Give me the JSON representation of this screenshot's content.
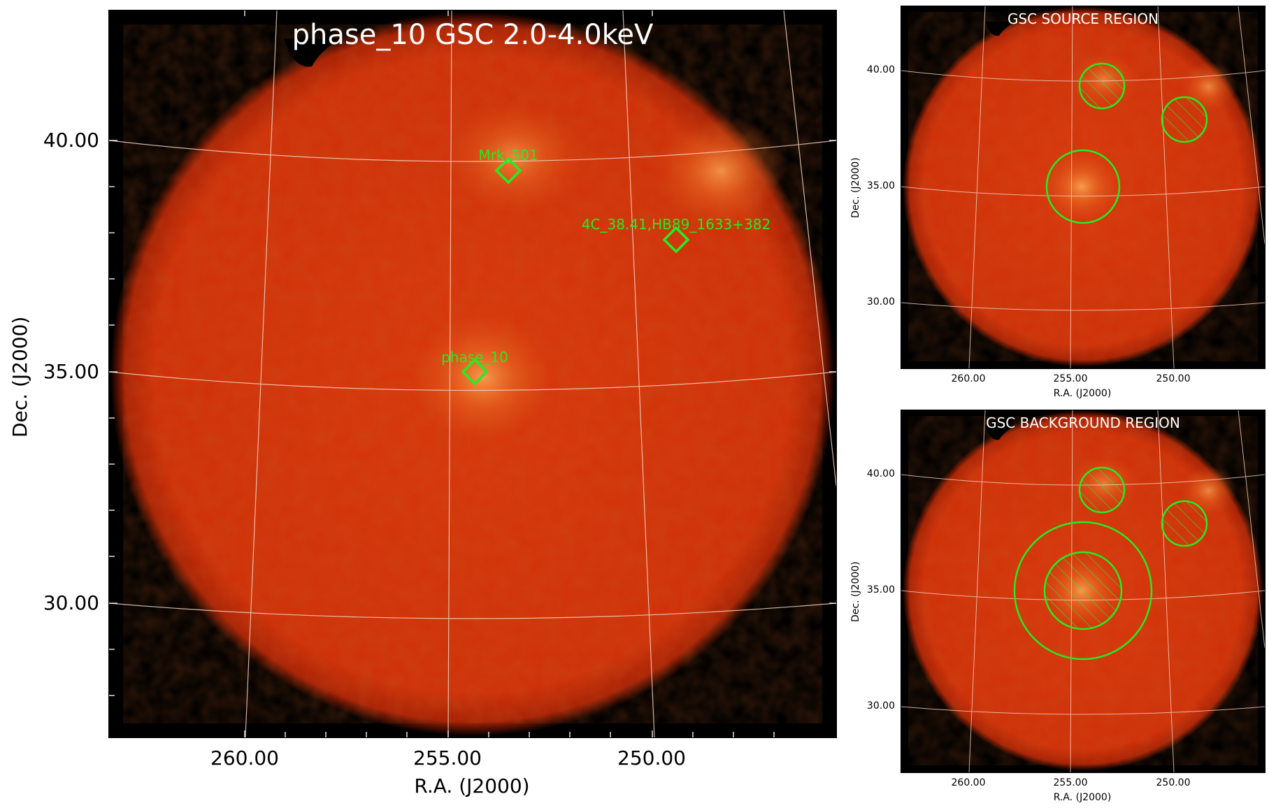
{
  "main": {
    "title": "phase_10 GSC 2.0-4.0keV",
    "xlabel": "R.A. (J2000)",
    "ylabel": "Dec. (J2000)",
    "xticks": [
      "260.00",
      "255.00",
      "250.00"
    ],
    "yticks": [
      "40.00",
      "35.00",
      "30.00"
    ],
    "sources": [
      {
        "name": "Mrk_501"
      },
      {
        "name": "4C_38.41,HB89_1633+382"
      },
      {
        "name": "phase_10"
      }
    ]
  },
  "source_region": {
    "title": "GSC SOURCE REGION",
    "xlabel": "R.A. (J2000)",
    "ylabel": "Dec. (J2000)",
    "xticks": [
      "260.00",
      "255.00",
      "250.00"
    ],
    "yticks": [
      "40.00",
      "35.00",
      "30.00"
    ]
  },
  "background_region": {
    "title": "GSC BACKGROUND REGION",
    "xlabel": "R.A. (J2000)",
    "ylabel": "Dec. (J2000)",
    "xticks": [
      "260.00",
      "255.00",
      "250.00"
    ],
    "yticks": [
      "40.00",
      "35.00",
      "30.00"
    ]
  },
  "colors": {
    "map": "#d2320a",
    "bright": "#f07a2a",
    "region": "#22ee22",
    "grid": "#f3d2c2"
  }
}
